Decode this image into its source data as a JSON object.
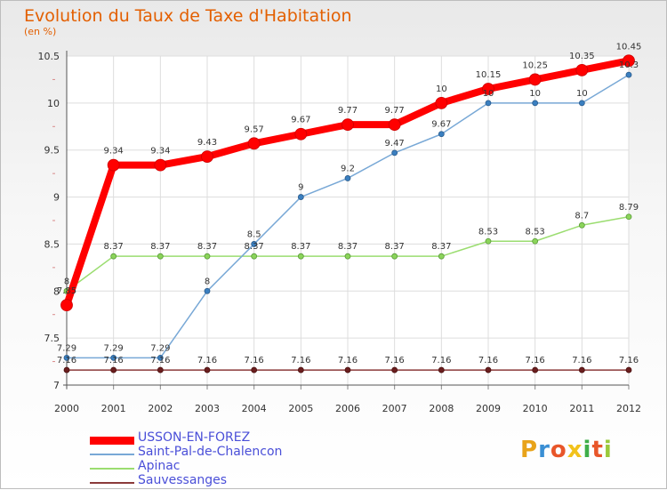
{
  "title": "Evolution du Taux de Taxe d'Habitation",
  "subtitle": "(en %)",
  "logo": {
    "text": "Proxiti",
    "colors": [
      "#e8a31a",
      "#3a8fd4",
      "#e8562a",
      "#f2c21b",
      "#3fae49",
      "#e8562a",
      "#9bc93b"
    ]
  },
  "chart_data": {
    "type": "line",
    "title": "Evolution du Taux de Taxe d'Habitation",
    "ylabel": "(en %)",
    "xlabel": "",
    "x": [
      "2000",
      "2001",
      "2002",
      "2003",
      "2004",
      "2005",
      "2006",
      "2007",
      "2008",
      "2009",
      "2010",
      "2011",
      "2012"
    ],
    "ylim": [
      7,
      10.5
    ],
    "yticks": [
      "7",
      "7.5",
      "8",
      "8.5",
      "9",
      "9.5",
      "10",
      "10.5"
    ],
    "grid": true,
    "legend_position": "bottom-left",
    "series": [
      {
        "name": "USSON-EN-FOREZ",
        "color": "#ff0000",
        "values": [
          7.85,
          9.34,
          9.34,
          9.43,
          9.57,
          9.67,
          9.77,
          9.77,
          10,
          10.15,
          10.25,
          10.35,
          10.45
        ],
        "labels": [
          "7.85",
          "9.34",
          "9.34",
          "9.43",
          "9.57",
          "9.67",
          "9.77",
          "9.77",
          "10",
          "10.15",
          "10.25",
          "10.35",
          "10.45"
        ]
      },
      {
        "name": "Saint-Pal-de-Chalencon",
        "color": "#78a8d6",
        "values": [
          7.29,
          7.29,
          7.29,
          8,
          8.5,
          9,
          9.2,
          9.47,
          9.67,
          10,
          10,
          10,
          10.3
        ],
        "labels": [
          "7.29",
          "7.29",
          "7.29",
          "8",
          "8.5",
          "9",
          "9.2",
          "9.47",
          "9.67",
          "10",
          "10",
          "10",
          "10.3"
        ]
      },
      {
        "name": "Apinac",
        "color": "#9bdd70",
        "values": [
          8,
          8.37,
          8.37,
          8.37,
          8.37,
          8.37,
          8.37,
          8.37,
          8.37,
          8.53,
          8.53,
          8.7,
          8.79
        ],
        "labels": [
          "8",
          "8.37",
          "8.37",
          "8.37",
          "8.37",
          "8.37",
          "8.37",
          "8.37",
          "8.37",
          "8.53",
          "8.53",
          "8.7",
          "8.79"
        ]
      },
      {
        "name": "Sauvessanges",
        "color": "#8b3a3a",
        "values": [
          7.16,
          7.16,
          7.16,
          7.16,
          7.16,
          7.16,
          7.16,
          7.16,
          7.16,
          7.16,
          7.16,
          7.16,
          7.16
        ],
        "labels": [
          "7.16",
          "7.16",
          "7.16",
          "7.16",
          "7.16",
          "7.16",
          "7.16",
          "7.16",
          "7.16",
          "7.16",
          "7.16",
          "7.16",
          "7.16"
        ]
      }
    ]
  }
}
